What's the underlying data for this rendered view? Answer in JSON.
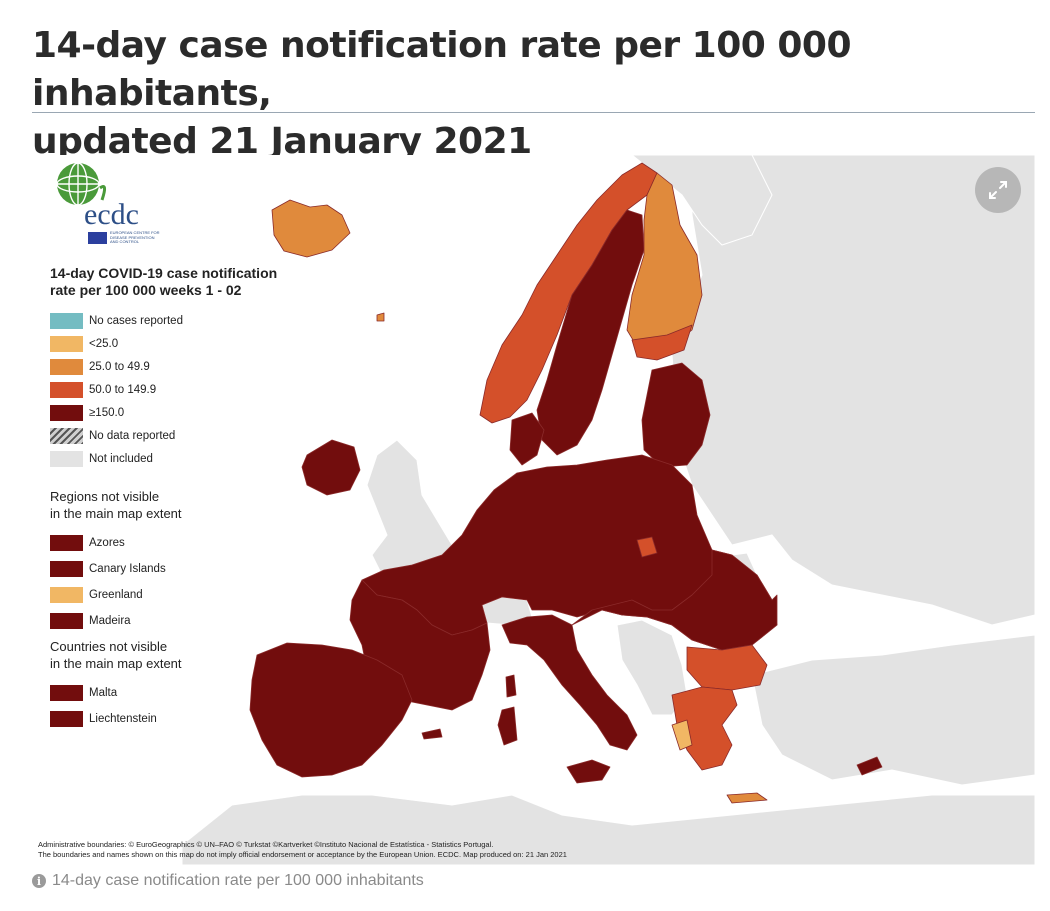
{
  "page": {
    "title_line1": "14-day case notification rate per 100 000 inhabitants,",
    "title_line2": "updated 21 January 2021",
    "caption": "14-day case notification rate per 100 000 inhabitants"
  },
  "logo": {
    "text": "ecdc",
    "subtext": "EUROPEAN CENTRE FOR DISEASE PREVENTION AND CONTROL"
  },
  "legend": {
    "title_line1": "14-day COVID-19 case notification",
    "title_line2": "rate per 100 000 weeks 1 - 02",
    "classes": [
      {
        "label": "No cases reported",
        "color": "#74bcc2"
      },
      {
        "label": "<25.0",
        "color": "#f1b764"
      },
      {
        "label": "25.0 to 49.9",
        "color": "#e08a3c"
      },
      {
        "label": "50.0 to 149.9",
        "color": "#d4502a"
      },
      {
        "label": "≥150.0",
        "color": "#720d0d"
      },
      {
        "label": "No data reported",
        "color": "hatched"
      },
      {
        "label": "Not included",
        "color": "#e3e3e3"
      }
    ],
    "regions_heading_line1": "Regions not visible",
    "regions_heading_line2": "in the main map extent",
    "regions": [
      {
        "label": "Azores",
        "color": "#720d0d"
      },
      {
        "label": "Canary Islands",
        "color": "#720d0d"
      },
      {
        "label": "Greenland",
        "color": "#f1b764"
      },
      {
        "label": "Madeira",
        "color": "#720d0d"
      }
    ],
    "countries_heading_line1": "Countries not visible",
    "countries_heading_line2": "in the main map extent",
    "countries": [
      {
        "label": "Malta",
        "color": "#720d0d"
      },
      {
        "label": "Liechtenstein",
        "color": "#720d0d"
      }
    ]
  },
  "credits": {
    "line1": "Administrative boundaries: © EuroGeographics © UN–FAO © Turkstat ©Kartverket ©Instituto Nacional de Estatística - Statistics Portugal.",
    "line2": "The boundaries and names shown on this map do not imply official endorsement or acceptance by the European Union. ECDC. Map produced on: 21 Jan 2021"
  },
  "map": {
    "colors": {
      "sea": "#ffffff",
      "not_included": "#e3e3e3",
      "border": "#9e3a3a"
    },
    "countries": [
      {
        "name": "Iceland",
        "class": "25.0 to 49.9"
      },
      {
        "name": "Norway",
        "class": "50.0 to 149.9"
      },
      {
        "name": "Sweden",
        "class": "≥150.0"
      },
      {
        "name": "Finland",
        "class": "25.0 to 49.9"
      },
      {
        "name": "Estonia",
        "class": "≥150.0"
      },
      {
        "name": "Latvia",
        "class": "≥150.0"
      },
      {
        "name": "Lithuania",
        "class": "≥150.0"
      },
      {
        "name": "Ireland",
        "class": "≥150.0"
      },
      {
        "name": "Denmark",
        "class": "≥150.0"
      },
      {
        "name": "Germany",
        "class": "≥150.0"
      },
      {
        "name": "Poland",
        "class": "≥150.0"
      },
      {
        "name": "France",
        "class": "≥150.0"
      },
      {
        "name": "Spain",
        "class": "≥150.0"
      },
      {
        "name": "Portugal",
        "class": "≥150.0"
      },
      {
        "name": "Italy",
        "class": "≥150.0"
      },
      {
        "name": "Austria",
        "class": "≥150.0"
      },
      {
        "name": "Czechia",
        "class": "≥150.0"
      },
      {
        "name": "Slovakia",
        "class": "≥150.0"
      },
      {
        "name": "Hungary",
        "class": "≥150.0"
      },
      {
        "name": "Slovenia",
        "class": "≥150.0"
      },
      {
        "name": "Croatia",
        "class": "≥150.0"
      },
      {
        "name": "Romania",
        "class": "≥150.0"
      },
      {
        "name": "Bulgaria",
        "class": "50.0 to 149.9"
      },
      {
        "name": "Greece",
        "class": "50.0 to 149.9"
      },
      {
        "name": "Cyprus",
        "class": "≥150.0"
      },
      {
        "name": "Netherlands",
        "class": "≥150.0"
      },
      {
        "name": "Belgium",
        "class": "≥150.0"
      },
      {
        "name": "Luxembourg",
        "class": "≥150.0"
      }
    ]
  }
}
